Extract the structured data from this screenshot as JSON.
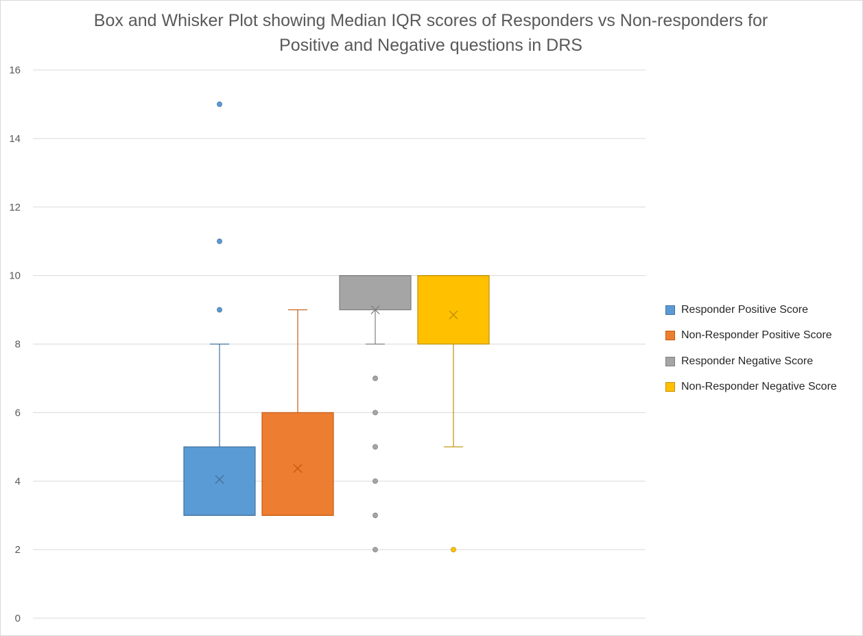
{
  "chart_data": {
    "type": "boxplot",
    "title_lines": [
      "Box and Whisker Plot showing Median IQR scores of Responders vs Non-responders for",
      "Positive and Negative questions in DRS"
    ],
    "ylim": [
      0,
      16
    ],
    "yticks": [
      0,
      2,
      4,
      6,
      8,
      10,
      12,
      14,
      16
    ],
    "grid": true,
    "legend_position": "right",
    "series": [
      {
        "name": "Responder Positive Score",
        "color": "#5b9bd5",
        "stroke": "#41719c",
        "q1": 3,
        "median": 3,
        "q3": 5,
        "whisker_low": 3,
        "whisker_high": 8,
        "mean": 4.05,
        "outliers": [
          9,
          11,
          15
        ]
      },
      {
        "name": "Non-Responder Positive Score",
        "color": "#ed7d31",
        "stroke": "#c55a11",
        "q1": 3,
        "median": 3,
        "q3": 6,
        "whisker_low": 3,
        "whisker_high": 9,
        "mean": 4.37,
        "outliers": []
      },
      {
        "name": "Responder Negative Score",
        "color": "#a5a5a5",
        "stroke": "#7f7f7f",
        "q1": 9,
        "median": 10,
        "q3": 10,
        "whisker_low": 8,
        "whisker_high": 10,
        "mean": 9.0,
        "outliers": [
          2,
          3,
          4,
          5,
          6,
          7
        ]
      },
      {
        "name": "Non-Responder Negative Score",
        "color": "#ffc000",
        "stroke": "#bf9000",
        "q1": 8,
        "median": 10,
        "q3": 10,
        "whisker_low": 5,
        "whisker_high": 10,
        "mean": 8.85,
        "outliers": [
          2
        ]
      }
    ]
  }
}
